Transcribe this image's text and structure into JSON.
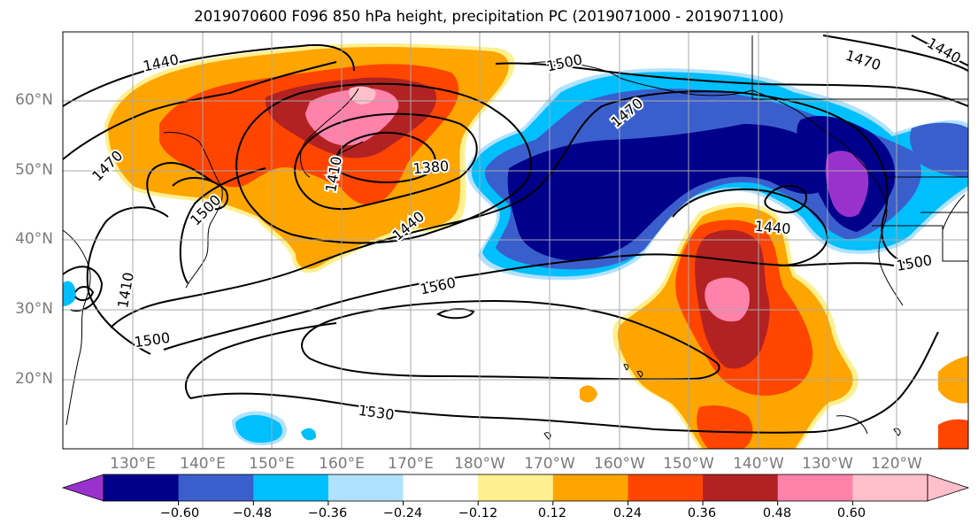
{
  "title": "2019070600 F096 850 hPa height, precipitation PC (2019071000 - 2019071100)",
  "lat_labels": [
    "60°N",
    "50°N",
    "40°N",
    "30°N",
    "20°N"
  ],
  "lon_labels": [
    "130°E",
    "140°E",
    "150°E",
    "160°E",
    "170°E",
    "180°W",
    "170°W",
    "160°W",
    "150°W",
    "140°W",
    "130°W",
    "120°W"
  ],
  "colorbar": {
    "ticks": [
      "−0.60",
      "−0.48",
      "−0.36",
      "−0.24",
      "−0.12",
      "0.12",
      "0.24",
      "0.36",
      "0.48",
      "0.60"
    ],
    "colors": [
      "#9932cc",
      "#00008b",
      "#3a5fcd",
      "#00bfff",
      "#b0e2ff",
      "#ffffff",
      "#fff08f",
      "#ffa500",
      "#ff4500",
      "#b22222",
      "#ff82ab",
      "#ffc0cb"
    ]
  },
  "contour_labels": [
    "1440",
    "1470",
    "1500",
    "1470",
    "1440",
    "1410",
    "1500",
    "1380",
    "1440",
    "1560",
    "1500",
    "1410",
    "1530",
    "1440",
    "1500",
    "1470"
  ]
}
